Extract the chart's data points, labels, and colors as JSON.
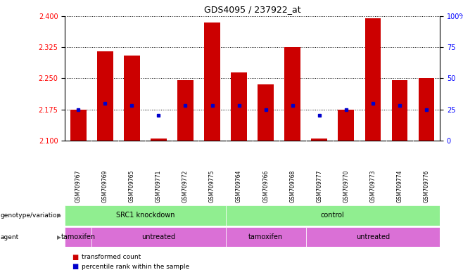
{
  "title": "GDS4095 / 237922_at",
  "samples": [
    "GSM709767",
    "GSM709769",
    "GSM709765",
    "GSM709771",
    "GSM709772",
    "GSM709775",
    "GSM709764",
    "GSM709766",
    "GSM709768",
    "GSM709777",
    "GSM709770",
    "GSM709773",
    "GSM709774",
    "GSM709776"
  ],
  "transformed_count": [
    2.175,
    2.315,
    2.305,
    2.105,
    2.245,
    2.385,
    2.265,
    2.235,
    2.325,
    2.105,
    2.175,
    2.395,
    2.245,
    2.25
  ],
  "percentile_rank": [
    25,
    30,
    28,
    20,
    28,
    28,
    28,
    25,
    28,
    20,
    25,
    30,
    28,
    25
  ],
  "ylim_left": [
    2.1,
    2.4
  ],
  "ylim_right": [
    0,
    100
  ],
  "yticks_left": [
    2.1,
    2.175,
    2.25,
    2.325,
    2.4
  ],
  "yticks_right": [
    0,
    25,
    50,
    75,
    100
  ],
  "ytick_labels_right": [
    "0",
    "25",
    "50",
    "75",
    "100%"
  ],
  "bar_color": "#cc0000",
  "dot_color": "#0000cc",
  "bar_width": 0.6,
  "green_color": "#90ee90",
  "magenta_color": "#da70d6",
  "genotype_label": "genotype/variation",
  "agent_label": "agent",
  "legend_items": [
    "transformed count",
    "percentile rank within the sample"
  ],
  "geno_groups": [
    [
      "SRC1 knockdown",
      0,
      5
    ],
    [
      "control",
      6,
      13
    ]
  ],
  "agent_groups": [
    [
      "tamoxifen",
      0,
      0
    ],
    [
      "untreated",
      1,
      5
    ],
    [
      "tamoxifen",
      6,
      8
    ],
    [
      "untreated",
      9,
      13
    ]
  ]
}
